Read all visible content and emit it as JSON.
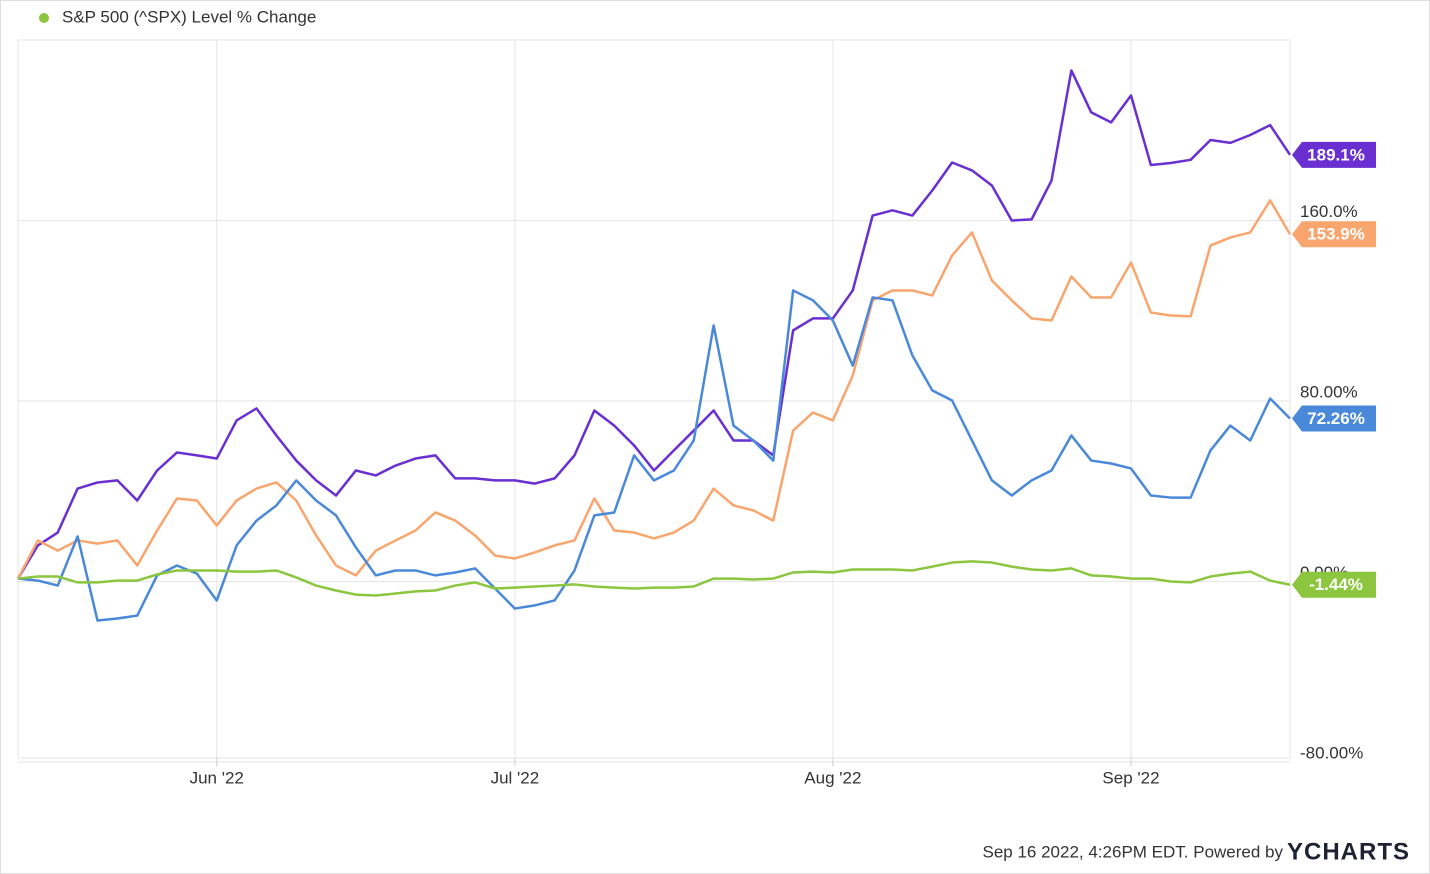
{
  "chart_data": {
    "type": "line",
    "categories": [
      null,
      null,
      null,
      null,
      null,
      null,
      null,
      null,
      null,
      null,
      "Jun '22",
      null,
      null,
      null,
      null,
      null,
      null,
      null,
      null,
      null,
      null,
      null,
      null,
      null,
      null,
      "Jul '22",
      null,
      null,
      null,
      null,
      null,
      null,
      null,
      null,
      null,
      null,
      null,
      null,
      null,
      null,
      null,
      "Aug '22",
      null,
      null,
      null,
      null,
      null,
      null,
      null,
      null,
      null,
      null,
      null,
      null,
      null,
      null,
      "Sep '22",
      null,
      null,
      null,
      null,
      null,
      null,
      null,
      null
    ],
    "series": [
      {
        "color": "#6a2fd1",
        "values": [
          1.3,
          16.0,
          21.7,
          41.2,
          43.9,
          44.8,
          35.9,
          49.2,
          57.2,
          55.9,
          54.5,
          71.4,
          76.7,
          64.7,
          53.6,
          44.8,
          38.1,
          49.2,
          47.0,
          51.4,
          54.5,
          55.9,
          45.7,
          45.7,
          44.8,
          44.8,
          43.4,
          45.7,
          55.9,
          75.8,
          69.1,
          60.3,
          49.2,
          58.1,
          66.9,
          75.8,
          62.5,
          62.5,
          55.9,
          111.3,
          116.6,
          116.6,
          129.0,
          162.2,
          164.5,
          162.2,
          173.3,
          185.7,
          182.2,
          175.5,
          160.0,
          160.5,
          177.7,
          226.5,
          207.9,
          203.5,
          215.4,
          184.6,
          185.5,
          186.9,
          195.7,
          194.4,
          197.9,
          202.3,
          189.1
        ],
        "value_labels": [
          null,
          null,
          null,
          null,
          null,
          null,
          null,
          null,
          null,
          null,
          null,
          null,
          null,
          null,
          null,
          null,
          null,
          null,
          null,
          null,
          null,
          null,
          null,
          null,
          null,
          null,
          null,
          null,
          null,
          null,
          null,
          null,
          null,
          null,
          null,
          null,
          null,
          null,
          null,
          null,
          null,
          null,
          null,
          null,
          null,
          null,
          null,
          null,
          null,
          null,
          null,
          null,
          null,
          null,
          null,
          null,
          null,
          null,
          null,
          null,
          null,
          null,
          null,
          null,
          "189.1%"
        ]
      },
      {
        "color": "#f8a56e",
        "values": [
          1.3,
          18.2,
          13.7,
          18.2,
          16.8,
          18.2,
          7.1,
          22.6,
          36.8,
          35.9,
          24.8,
          35.9,
          41.2,
          43.9,
          35.9,
          20.4,
          7.1,
          2.7,
          13.7,
          18.2,
          22.6,
          30.6,
          27.0,
          20.4,
          11.5,
          10.2,
          12.9,
          16.0,
          18.2,
          36.8,
          22.6,
          21.7,
          19.1,
          21.7,
          27.0,
          41.2,
          33.7,
          31.5,
          27.0,
          66.9,
          74.9,
          71.4,
          91.3,
          124.6,
          129.0,
          129.0,
          126.8,
          144.5,
          154.7,
          133.4,
          124.6,
          116.6,
          115.7,
          135.2,
          125.9,
          125.9,
          141.4,
          119.2,
          117.9,
          117.5,
          148.9,
          152.5,
          154.7,
          168.9,
          153.9
        ],
        "value_labels": [
          null,
          null,
          null,
          null,
          null,
          null,
          null,
          null,
          null,
          null,
          null,
          null,
          null,
          null,
          null,
          null,
          null,
          null,
          null,
          null,
          null,
          null,
          null,
          null,
          null,
          null,
          null,
          null,
          null,
          null,
          null,
          null,
          null,
          null,
          null,
          null,
          null,
          null,
          null,
          null,
          null,
          null,
          null,
          null,
          null,
          null,
          null,
          null,
          null,
          null,
          null,
          null,
          null,
          null,
          null,
          null,
          null,
          null,
          null,
          null,
          null,
          null,
          null,
          null,
          "153.9%"
        ]
      },
      {
        "color": "#4a89d9",
        "values": [
          1.3,
          0.4,
          -1.8,
          20.0,
          -17.3,
          -16.4,
          -15.1,
          2.7,
          7.1,
          3.5,
          -8.4,
          16.0,
          27.0,
          33.7,
          44.8,
          35.9,
          29.3,
          15.1,
          2.7,
          4.9,
          4.9,
          2.7,
          4.0,
          5.8,
          -3.1,
          -12.0,
          -10.6,
          -8.4,
          4.9,
          29.3,
          30.6,
          55.9,
          44.8,
          49.2,
          62.5,
          113.5,
          69.1,
          62.5,
          53.6,
          129.0,
          124.6,
          115.7,
          95.7,
          125.9,
          124.6,
          100.2,
          84.7,
          80.2,
          62.5,
          44.8,
          38.1,
          44.8,
          49.2,
          64.7,
          53.6,
          52.3,
          50.1,
          38.1,
          37.2,
          37.2,
          58.1,
          69.1,
          62.5,
          81.1,
          72.26
        ],
        "value_labels": [
          null,
          null,
          null,
          null,
          null,
          null,
          null,
          null,
          null,
          null,
          null,
          null,
          null,
          null,
          null,
          null,
          null,
          null,
          null,
          null,
          null,
          null,
          null,
          null,
          null,
          null,
          null,
          null,
          null,
          null,
          null,
          null,
          null,
          null,
          null,
          null,
          null,
          null,
          null,
          null,
          null,
          null,
          null,
          null,
          null,
          null,
          null,
          null,
          null,
          null,
          null,
          null,
          null,
          null,
          null,
          null,
          null,
          null,
          null,
          null,
          null,
          null,
          null,
          null,
          "72.26%"
        ]
      },
      {
        "name": "S&P 500 (^SPX) Level % Change",
        "color": "#8cc63f",
        "values": [
          1.3,
          2.2,
          2.2,
          -0.4,
          -0.4,
          0.4,
          0.4,
          3.1,
          4.9,
          4.9,
          4.9,
          4.4,
          4.4,
          4.9,
          1.8,
          -1.8,
          -4.0,
          -5.8,
          -6.2,
          -5.3,
          -4.4,
          -4.0,
          -1.8,
          -0.4,
          -3.1,
          -2.7,
          -2.2,
          -1.8,
          -1.3,
          -2.2,
          -2.7,
          -3.1,
          -2.7,
          -2.7,
          -2.2,
          1.3,
          1.3,
          0.9,
          1.3,
          4.0,
          4.4,
          4.0,
          5.3,
          5.3,
          5.3,
          4.9,
          6.6,
          8.4,
          8.9,
          8.4,
          6.6,
          5.3,
          4.9,
          5.8,
          2.7,
          2.2,
          1.3,
          1.3,
          0,
          -0.4,
          2.2,
          3.5,
          4.4,
          0.4,
          -1.44
        ],
        "value_labels": [
          null,
          null,
          null,
          null,
          null,
          null,
          null,
          null,
          null,
          null,
          null,
          null,
          null,
          null,
          null,
          null,
          null,
          null,
          null,
          null,
          null,
          null,
          null,
          null,
          null,
          null,
          null,
          null,
          null,
          null,
          null,
          null,
          null,
          null,
          null,
          null,
          null,
          null,
          null,
          null,
          null,
          null,
          null,
          null,
          null,
          null,
          null,
          null,
          null,
          null,
          null,
          null,
          null,
          null,
          null,
          null,
          null,
          null,
          null,
          null,
          null,
          null,
          null,
          null,
          "-1.44%"
        ]
      }
    ],
    "ylim": [
      -80,
      240
    ],
    "yticks": [
      {
        "value": -80,
        "label": "-80.00%"
      },
      {
        "value": 0,
        "label": "0.00%"
      },
      {
        "value": 80,
        "label": "80.00%"
      },
      {
        "value": 160,
        "label": "160.0%"
      }
    ],
    "grid": true,
    "legend": "top-left",
    "footer": "Sep 16 2022, 4:26PM EDT. Powered by",
    "logo": "YCHARTS"
  }
}
